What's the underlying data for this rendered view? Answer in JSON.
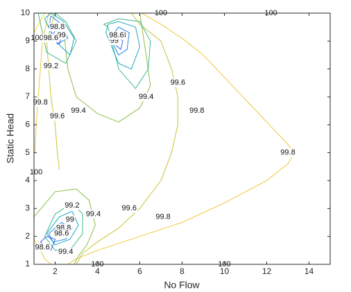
{
  "chart_data": {
    "type": "contour",
    "xlabel": "No Flow",
    "ylabel": "Static Head",
    "xlim": [
      1,
      15
    ],
    "ylim": [
      1,
      10
    ],
    "xticks": [
      2,
      4,
      6,
      8,
      10,
      12,
      14
    ],
    "yticks": [
      1,
      2,
      3,
      4,
      5,
      6,
      7,
      8,
      9,
      10
    ],
    "contours": [
      {
        "level": 100,
        "color": "#f2df1e",
        "x": [
          6.3,
          15,
          null,
          3,
          15,
          null,
          1,
          1.5
        ],
        "y": [
          10,
          10,
          null,
          1,
          1,
          null,
          9.3,
          10
        ],
        "labels": [
          [
            7,
            10
          ],
          [
            12.2,
            10
          ],
          [
            4,
            1
          ],
          [
            10,
            1
          ],
          [
            1.15,
            9.1
          ],
          [
            1.1,
            4.3
          ]
        ]
      },
      {
        "level": 99.8,
        "color": "#ebc83a",
        "x": [
          6.1,
          7,
          8,
          9,
          10,
          11,
          12,
          13,
          13.3,
          13,
          12,
          10,
          8,
          6,
          4,
          3,
          2.6,
          null,
          1.7,
          1.4,
          1.3,
          1.2,
          1.1,
          1.05,
          null,
          1,
          1.3,
          1.5,
          1.8
        ],
        "y": [
          10,
          9.6,
          9.1,
          8.5,
          7.7,
          6.9,
          6.1,
          5.3,
          5,
          4.6,
          4,
          3.2,
          2.5,
          2,
          1.5,
          1.2,
          1,
          null,
          10,
          9,
          8,
          7,
          6,
          5,
          null,
          1.9,
          1.5,
          1.2,
          1
        ],
        "labels": [
          [
            8.7,
            6.5
          ],
          [
            13,
            5
          ],
          [
            7.1,
            2.7
          ],
          [
            1.3,
            6.8
          ]
        ]
      },
      {
        "level": 99.6,
        "color": "#c9c233",
        "x": [
          5.6,
          6,
          7,
          7.5,
          7.8,
          7.8,
          7.5,
          7,
          6,
          5,
          4,
          3.3,
          3,
          null,
          2,
          1.6,
          1.7,
          1.8,
          2,
          2.1,
          2.2
        ],
        "y": [
          10,
          9.6,
          9,
          8,
          7,
          6,
          5,
          4,
          3,
          2.3,
          1.8,
          1.4,
          1,
          null,
          10,
          9,
          8,
          7,
          6,
          5,
          4.4
        ],
        "labels": [
          [
            7.8,
            7.5
          ],
          [
            5.5,
            3
          ],
          [
            2.1,
            6.3
          ]
        ]
      },
      {
        "level": 99.4,
        "color": "#8cbf45",
        "x": [
          2.4,
          2.6,
          3,
          4,
          5,
          6,
          6.5,
          6.3,
          6,
          null,
          1,
          2,
          3,
          3.6,
          3.9,
          3.5,
          3.1,
          2.9
        ],
        "y": [
          9.4,
          8,
          7,
          6.4,
          6.1,
          6.6,
          7.4,
          8.5,
          10,
          null,
          2.7,
          3.6,
          3.7,
          3.3,
          2.4,
          1.7,
          1.3,
          1
        ],
        "labels": [
          [
            3.1,
            6.5
          ],
          [
            6.3,
            7
          ],
          [
            3.8,
            2.8
          ],
          [
            2.5,
            1.45
          ]
        ]
      },
      {
        "level": 99.2,
        "color": "#3db98b",
        "x": [
          1.2,
          1.6,
          2.5,
          3,
          2.5,
          2,
          1.6,
          1.3,
          null,
          4.5,
          5,
          5.8,
          6.4,
          6.5,
          6,
          5,
          4.3,
          4.5,
          null,
          1.5,
          2,
          2.8,
          3.3,
          3.3,
          2.8,
          2,
          1.5
        ],
        "y": [
          10,
          8.6,
          8.2,
          9,
          9.7,
          10,
          10,
          10,
          null,
          9.5,
          8,
          7.3,
          8,
          9,
          9.7,
          9.8,
          9.6,
          9.5,
          null,
          2,
          2.8,
          3.2,
          2.8,
          2.1,
          1.6,
          1.5,
          2
        ],
        "labels": [
          [
            1.8,
            8.1
          ],
          [
            2.8,
            3.1
          ]
        ]
      },
      {
        "level": 99,
        "color": "#1aa6c4",
        "x": [
          1.5,
          2,
          2.7,
          2.9,
          2.4,
          1.8,
          1.5,
          null,
          4.4,
          5,
          5.6,
          6,
          5.8,
          5,
          4.5,
          4.4,
          null,
          1.6,
          2.2,
          2.8,
          3.1,
          2.7,
          2,
          1.6
        ],
        "y": [
          9.8,
          9,
          8.5,
          9.1,
          9.7,
          10,
          9.8,
          null,
          9.3,
          8.2,
          8,
          8.8,
          9.5,
          9.7,
          9.6,
          9.3,
          null,
          2.1,
          2.7,
          2.9,
          2.4,
          1.9,
          1.7,
          2.1
        ],
        "labels": [
          [
            2.3,
            9.2
          ],
          [
            4.8,
            9
          ],
          [
            2.7,
            2.6
          ]
        ]
      },
      {
        "level": 98.8,
        "color": "#2385e0",
        "x": [
          1.7,
          2.1,
          2.6,
          2.3,
          1.8,
          1.7,
          null,
          4.6,
          5,
          5.4,
          5.5,
          5,
          4.6,
          null,
          1.7,
          2.3,
          2.8,
          2.5,
          1.9,
          1.7
        ],
        "y": [
          9.5,
          8.9,
          9.1,
          9.6,
          9.9,
          9.5,
          null,
          9.1,
          8.5,
          8.7,
          9.3,
          9.5,
          9.1,
          null,
          2.1,
          2.5,
          2.3,
          1.9,
          1.8,
          2.1
        ],
        "labels": [
          [
            2.1,
            9.5
          ],
          [
            5,
            9.2
          ],
          [
            2.4,
            2.3
          ]
        ]
      },
      {
        "level": 98.6,
        "color": "#3a5fe8",
        "x": [
          1.9,
          2.2,
          2.3,
          2,
          1.9,
          null,
          4.8,
          5.1,
          5.2,
          4.9,
          4.8,
          null,
          1.3,
          1.6,
          2,
          1.8,
          1.3
        ],
        "y": [
          9.2,
          8.9,
          9.2,
          9.4,
          9.2,
          null,
          8.9,
          8.7,
          9,
          9.2,
          8.9,
          null,
          1.8,
          2,
          1.9,
          1.5,
          1.8
        ],
        "labels": [
          [
            1.8,
            9.1
          ],
          [
            4.9,
            9.2
          ],
          [
            1.4,
            1.6
          ],
          [
            2.3,
            2.1
          ]
        ]
      }
    ]
  }
}
